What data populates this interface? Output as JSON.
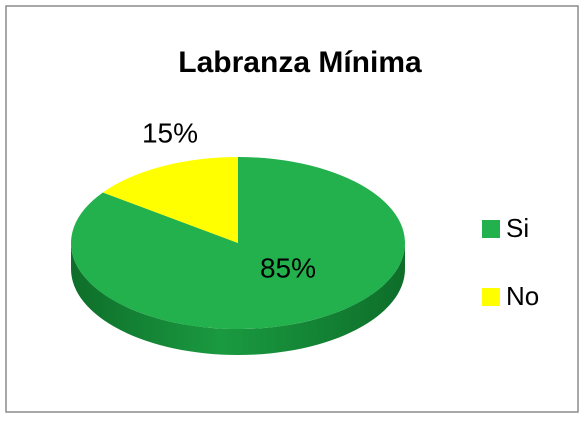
{
  "chart_data": {
    "type": "pie",
    "title": "Labranza Mínima",
    "categories": [
      "Si",
      "No"
    ],
    "values": [
      85,
      15
    ],
    "value_labels": [
      "85%",
      "15%"
    ],
    "colors": [
      "#22b14c",
      "#ffff00"
    ],
    "legend": "right"
  }
}
